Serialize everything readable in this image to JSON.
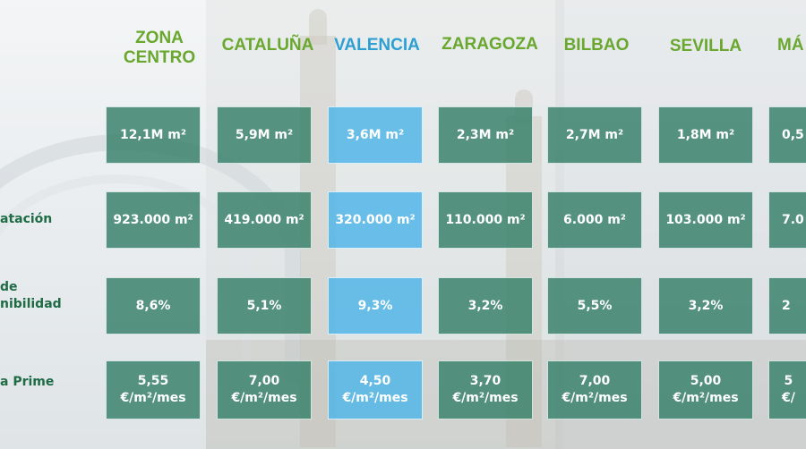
{
  "columns": [
    {
      "label": "ZONA\nCENTRO",
      "highlight": false
    },
    {
      "label": "CATALUÑA",
      "highlight": false
    },
    {
      "label": "VALENCIA",
      "highlight": true
    },
    {
      "label": "ZARAGOZA",
      "highlight": false
    },
    {
      "label": "BILBAO",
      "highlight": false
    },
    {
      "label": "SEVILLA",
      "highlight": false
    },
    {
      "label": "MÁ",
      "highlight": false
    }
  ],
  "rows": [
    {
      "label": "",
      "values": [
        "12,1M m²",
        "5,9M m²",
        "3,6M m²",
        "2,3M m²",
        "2,7M m²",
        "1,8M m²",
        "0,5"
      ]
    },
    {
      "label": "atación",
      "values": [
        "923.000 m²",
        "419.000 m²",
        "320.000 m²",
        "110.000 m²",
        "6.000 m²",
        "103.000 m²",
        "7.0"
      ]
    },
    {
      "label": "de\nnibilidad",
      "values": [
        "8,6%",
        "5,1%",
        "9,3%",
        "3,2%",
        "5,5%",
        "3,2%",
        "2"
      ]
    },
    {
      "label": "a Prime",
      "values": [
        "5,55\n€/m²/mes",
        "7,00\n€/m²/mes",
        "4,50\n€/m²/mes",
        "3,70\n€/m²/mes",
        "7,00\n€/m²/mes",
        "5,00\n€/m²/mes",
        "5\n€/"
      ]
    }
  ],
  "colors": {
    "cell": "#3c846e",
    "highlight": "#52b6e8",
    "header": "#6aa72e",
    "header_highlight": "#2e9fd3",
    "row_label": "#1f6b46"
  }
}
